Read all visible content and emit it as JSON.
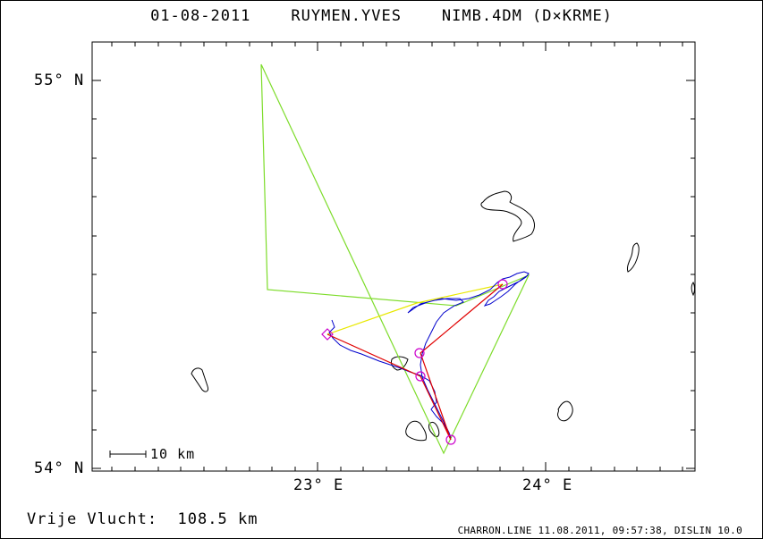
{
  "header": {
    "date": "01-08-2011",
    "pilot": "RUYMEN.YVES",
    "glider": "NIMB.4DM (D×KRME)"
  },
  "map": {
    "lat_labels": [
      "55° N",
      "54° N"
    ],
    "lon_labels": [
      "23° E",
      "24° E"
    ],
    "scale_label": "10 km",
    "colors": {
      "declared_task": "#7ddc2a",
      "optimized_route": "#e8e800",
      "scored_legs": "#e00000",
      "track": "#0000cc",
      "turnpoints": "#cc00cc",
      "lakes": "#000000"
    }
  },
  "distance": {
    "label": "Vrije Vlucht:",
    "value": "108.5 km"
  },
  "footer": {
    "text": "CHARRON.LINE 11.08.2011, 09:57:38, DISLIN 10.0"
  }
}
